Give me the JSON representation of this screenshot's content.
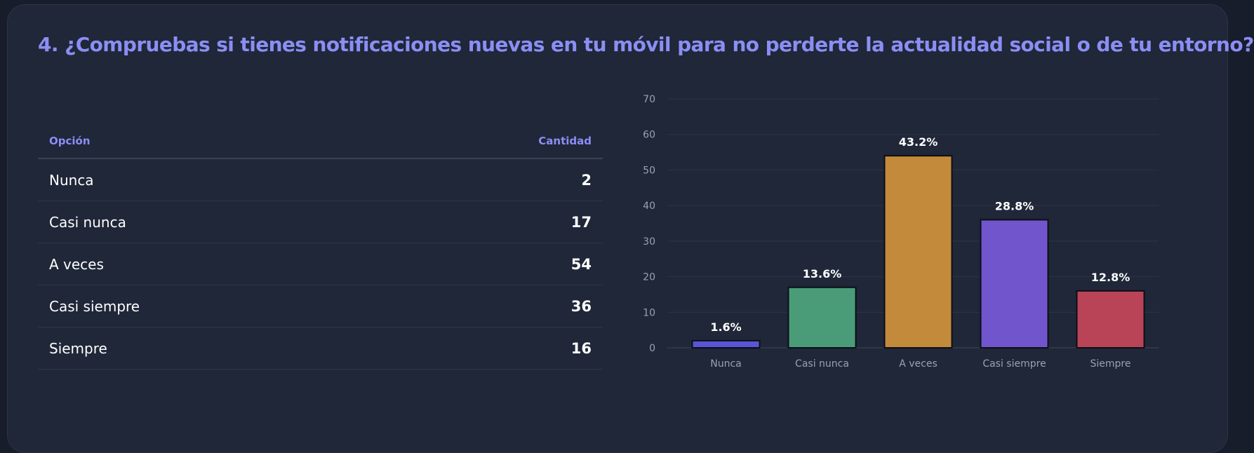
{
  "title": "4. ¿Compruebas si tienes notificaciones nuevas en tu móvil para no perderte la actualidad social o de tu entorno?",
  "table": {
    "header_option": "Opción",
    "header_count": "Cantidad",
    "rows": [
      {
        "option": "Nunca",
        "count": "2"
      },
      {
        "option": "Casi nunca",
        "count": "17"
      },
      {
        "option": "A veces",
        "count": "54"
      },
      {
        "option": "Casi siempre",
        "count": "36"
      },
      {
        "option": "Siempre",
        "count": "16"
      }
    ]
  },
  "chart_data": {
    "type": "bar",
    "title": "",
    "xlabel": "",
    "ylabel": "",
    "categories": [
      "Nunca",
      "Casi nunca",
      "A veces",
      "Casi siempre",
      "Siempre"
    ],
    "values": [
      2,
      17,
      54,
      36,
      16
    ],
    "data_labels": [
      "1.6%",
      "13.6%",
      "43.2%",
      "28.8%",
      "12.8%"
    ],
    "colors": [
      "#5856d6",
      "#4a9c79",
      "#c48a3b",
      "#7055cc",
      "#b94457"
    ],
    "ylim": [
      0,
      70
    ],
    "yticks": [
      0,
      10,
      20,
      30,
      40,
      50,
      60,
      70
    ],
    "grid": true,
    "legend": "none"
  }
}
